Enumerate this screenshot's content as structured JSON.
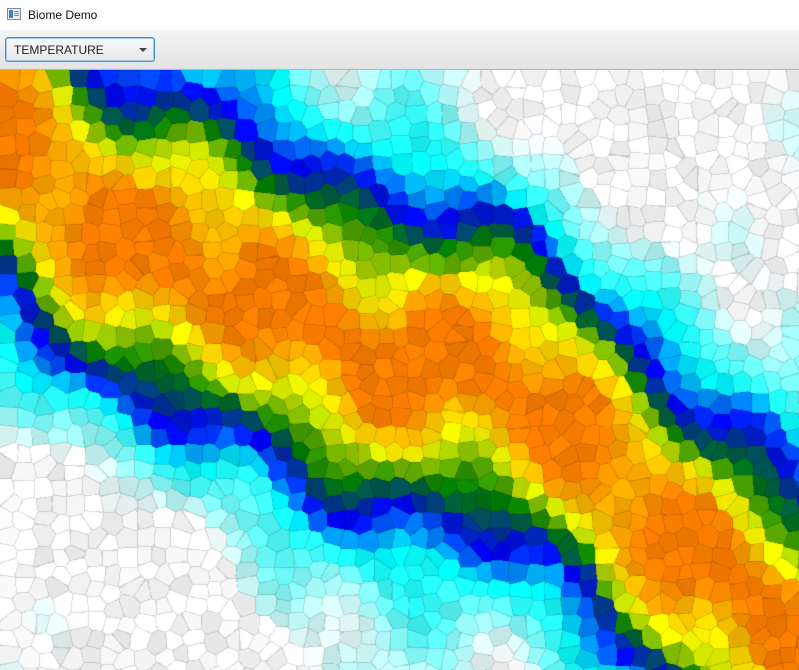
{
  "window": {
    "title": "Biome Demo",
    "icon": "app-window-icon"
  },
  "toolbar": {
    "layer_select": {
      "value": "TEMPERATURE",
      "icon": "chevron-down-icon"
    }
  },
  "map": {
    "layer": "TEMPERATURE",
    "style": "voronoi-cells",
    "palette": [
      "#ffffff",
      "#00ffff",
      "#0000ff",
      "#007f00",
      "#ffff00",
      "#ff7f00"
    ]
  }
}
